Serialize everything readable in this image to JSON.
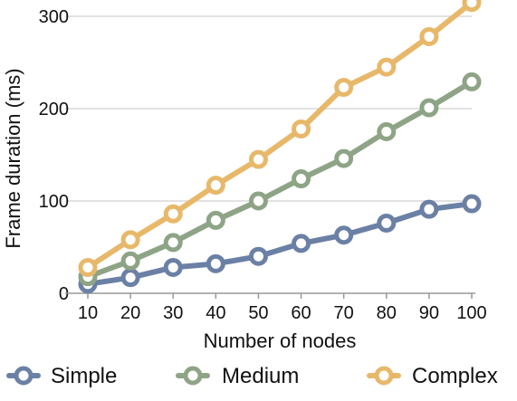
{
  "chart_data": {
    "type": "line",
    "x": [
      10,
      20,
      30,
      40,
      50,
      60,
      70,
      80,
      90,
      100
    ],
    "xlabel": "Number of nodes",
    "ylabel": "Frame duration (ms)",
    "ylim": [
      0,
      300
    ],
    "yticks": [
      0,
      100,
      200,
      300
    ],
    "grid": true,
    "legend_position": "bottom",
    "series": [
      {
        "name": "Simple",
        "color": "#6B80A5",
        "values": [
          10,
          17,
          28,
          32,
          40,
          54,
          63,
          76,
          91,
          97
        ]
      },
      {
        "name": "Medium",
        "color": "#8EA486",
        "values": [
          18,
          35,
          55,
          79,
          100,
          124,
          146,
          175,
          201,
          229
        ]
      },
      {
        "name": "Complex",
        "color": "#E8B86A",
        "values": [
          28,
          58,
          86,
          117,
          145,
          178,
          223,
          245,
          278,
          315
        ]
      }
    ]
  }
}
